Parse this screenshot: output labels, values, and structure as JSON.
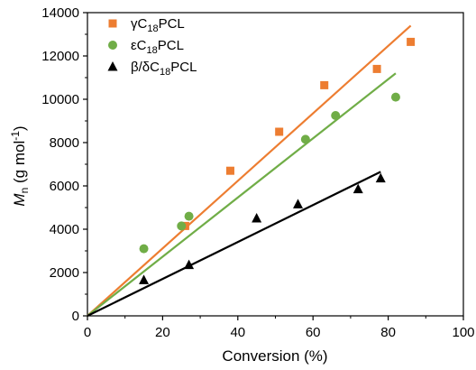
{
  "chart_data": {
    "type": "scatter",
    "xlabel": "Conversion (%)",
    "ylabel": {
      "main": "M",
      "sub": "n",
      "unit_open": " (g mol",
      "unit_sup": "-1",
      "unit_close": ")"
    },
    "xlim": [
      0,
      100
    ],
    "ylim": [
      0,
      14000
    ],
    "x_ticks": [
      0,
      20,
      40,
      60,
      80,
      100
    ],
    "y_ticks": [
      0,
      2000,
      4000,
      6000,
      8000,
      10000,
      12000,
      14000
    ],
    "grid": false,
    "legend_position": "top-left",
    "series": [
      {
        "name": "γC18PCL",
        "legend": {
          "pre": "γC",
          "sub": "18",
          "post": "PCL"
        },
        "marker": "square",
        "color": "#ED7D31",
        "x": [
          26,
          38,
          51,
          63,
          77,
          86
        ],
        "y": [
          4150,
          6700,
          8500,
          10650,
          11400,
          12650
        ],
        "fit_line": {
          "x": [
            0,
            86
          ],
          "y": [
            0,
            13400
          ]
        }
      },
      {
        "name": "εC18PCL",
        "legend": {
          "pre": "εC",
          "sub": "18",
          "post": "PCL"
        },
        "marker": "circle",
        "color": "#70AD47",
        "x": [
          15,
          25,
          27,
          58,
          66,
          82
        ],
        "y": [
          3100,
          4150,
          4600,
          8150,
          9250,
          10100
        ],
        "fit_line": {
          "x": [
            0,
            82
          ],
          "y": [
            0,
            11200
          ]
        }
      },
      {
        "name": "β/δC18PCL",
        "legend": {
          "pre": "β/δC",
          "sub": "18",
          "post": "PCL"
        },
        "marker": "triangle",
        "color": "#000000",
        "x": [
          15,
          27,
          45,
          56,
          72,
          78
        ],
        "y": [
          1650,
          2350,
          4500,
          5150,
          5850,
          6350
        ],
        "fit_line": {
          "x": [
            0,
            78
          ],
          "y": [
            0,
            6650
          ]
        }
      }
    ]
  }
}
